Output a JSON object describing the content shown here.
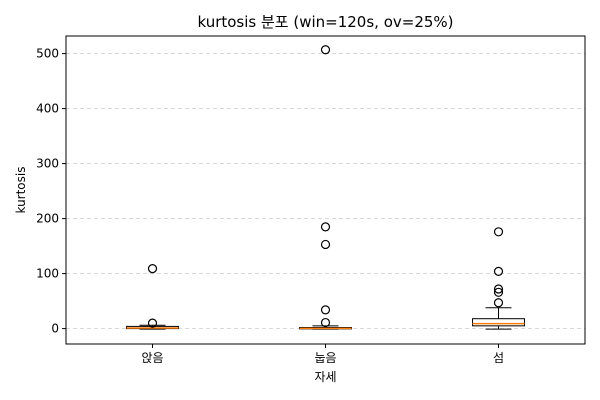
{
  "chart_data": {
    "type": "box",
    "title": "kurtosis 분포 (win=120s, ov=25%)",
    "xlabel": "자세",
    "ylabel": "kurtosis",
    "categories": [
      "앉음",
      "눕음",
      "섬"
    ],
    "ylim": [
      -28,
      532
    ],
    "yticks": [
      0,
      100,
      200,
      300,
      400,
      500
    ],
    "grid": true,
    "boxes": [
      {
        "category": "앉음",
        "whisker_low": -1,
        "q1": 0,
        "median": 1,
        "q3": 4,
        "whisker_high": 6,
        "outliers": [
          10,
          109
        ]
      },
      {
        "category": "눕음",
        "whisker_low": -1,
        "q1": -0.5,
        "median": 0.5,
        "q3": 2,
        "whisker_high": 5,
        "outliers": [
          11,
          34,
          153,
          185,
          507
        ]
      },
      {
        "category": "섬",
        "whisker_low": -1,
        "q1": 5,
        "median": 9,
        "q3": 18,
        "whisker_high": 38,
        "outliers": [
          47,
          66,
          72,
          104,
          176
        ]
      }
    ],
    "colors": {
      "median": "#ff7f0e",
      "box": "#000000",
      "grid": "#cccccc"
    }
  }
}
